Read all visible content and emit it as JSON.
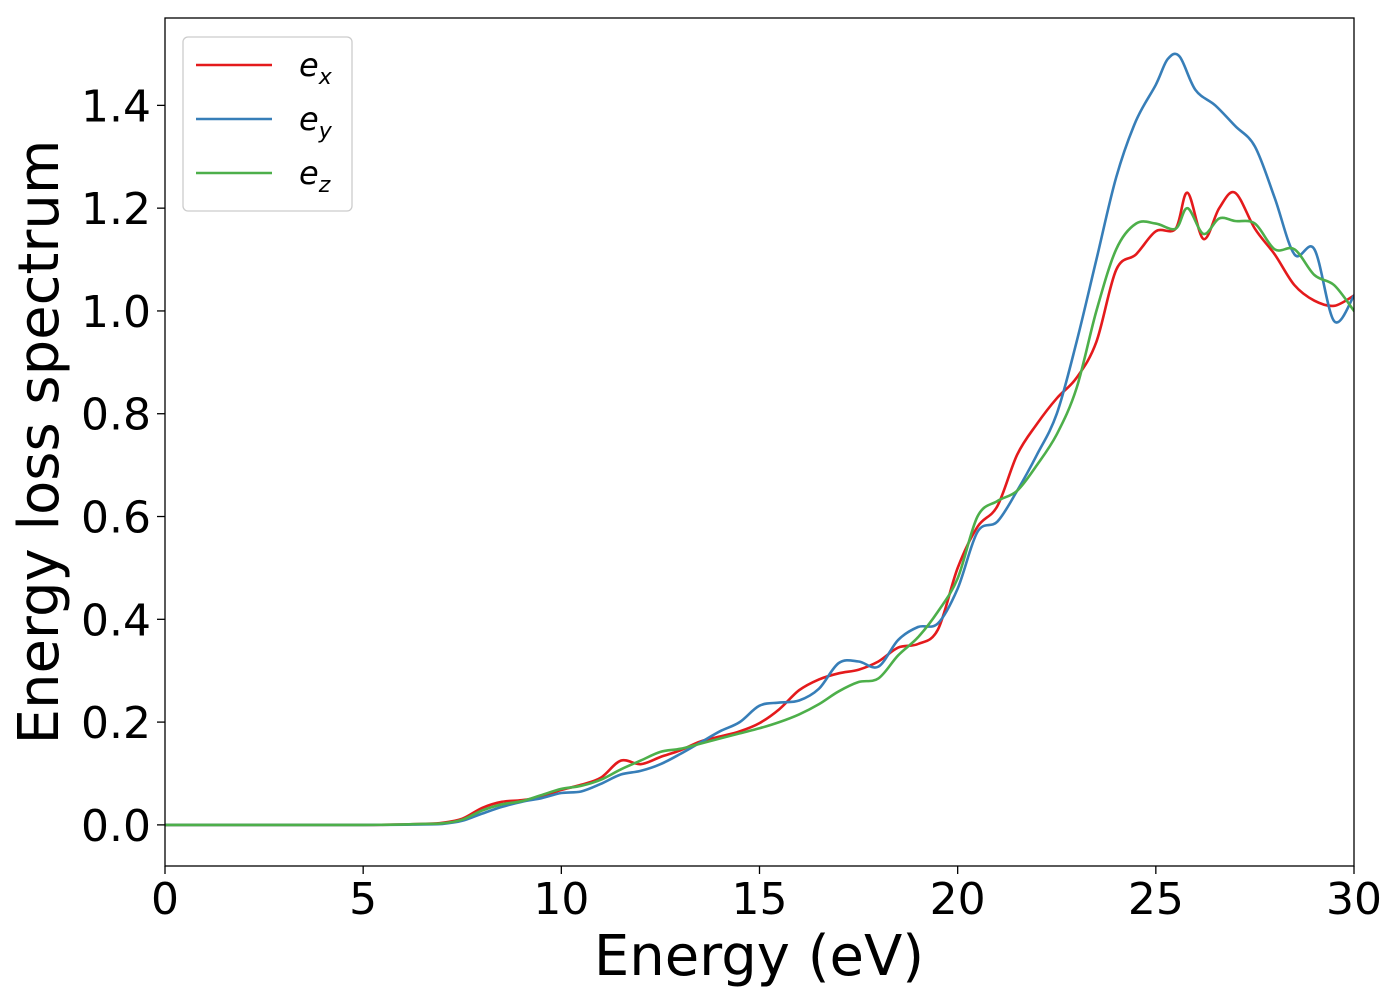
{
  "chart_data": {
    "type": "line",
    "xlabel": "Energy (eV)",
    "ylabel": "Energy loss spectrum",
    "xlim": [
      0,
      30
    ],
    "ylim": [
      -0.08,
      1.57
    ],
    "xticks": [
      0,
      5,
      10,
      15,
      20,
      25,
      30
    ],
    "xtick_labels": [
      "0",
      "5",
      "10",
      "15",
      "20",
      "25",
      "30"
    ],
    "yticks": [
      0.0,
      0.2,
      0.4,
      0.6,
      0.8,
      1.0,
      1.2,
      1.4
    ],
    "ytick_labels": [
      "0.0",
      "0.2",
      "0.4",
      "0.6",
      "0.8",
      "1.0",
      "1.2",
      "1.4"
    ],
    "grid": false,
    "legend_position": "top-left",
    "series": [
      {
        "name": "e",
        "subscript": "x",
        "color": "#e41a1c",
        "x": [
          0,
          5,
          6.5,
          7.0,
          7.5,
          8.0,
          8.5,
          9.0,
          9.5,
          10.0,
          10.5,
          11.0,
          11.5,
          12.0,
          12.5,
          13.0,
          13.5,
          14.0,
          14.5,
          15.0,
          15.5,
          16.0,
          16.5,
          17.0,
          17.5,
          18.0,
          18.5,
          19.0,
          19.5,
          20.0,
          20.5,
          21.0,
          21.5,
          22.0,
          22.5,
          23.0,
          23.5,
          24.0,
          24.5,
          25.0,
          25.5,
          25.8,
          26.2,
          26.6,
          27.0,
          27.5,
          28.0,
          28.5,
          29.0,
          29.5,
          30.0
        ],
        "y": [
          0.0,
          0.0,
          0.002,
          0.004,
          0.012,
          0.033,
          0.045,
          0.048,
          0.055,
          0.068,
          0.078,
          0.092,
          0.125,
          0.118,
          0.132,
          0.145,
          0.162,
          0.172,
          0.182,
          0.198,
          0.225,
          0.262,
          0.283,
          0.295,
          0.302,
          0.318,
          0.345,
          0.352,
          0.38,
          0.5,
          0.58,
          0.62,
          0.72,
          0.78,
          0.83,
          0.87,
          0.94,
          1.08,
          1.11,
          1.155,
          1.16,
          1.23,
          1.14,
          1.2,
          1.23,
          1.16,
          1.11,
          1.05,
          1.02,
          1.01,
          1.03
        ]
      },
      {
        "name": "e",
        "subscript": "y",
        "color": "#377eb8",
        "x": [
          0,
          5,
          6.5,
          7.0,
          7.5,
          8.0,
          8.5,
          9.0,
          9.5,
          10.0,
          10.5,
          11.0,
          11.5,
          12.0,
          12.5,
          13.0,
          13.5,
          14.0,
          14.5,
          15.0,
          15.5,
          16.0,
          16.5,
          17.0,
          17.5,
          18.0,
          18.5,
          19.0,
          19.5,
          20.0,
          20.5,
          21.0,
          21.5,
          22.0,
          22.5,
          23.0,
          23.5,
          24.0,
          24.5,
          25.0,
          25.3,
          25.6,
          26.0,
          26.5,
          27.0,
          27.5,
          28.0,
          28.5,
          29.0,
          29.5,
          30.0
        ],
        "y": [
          0.0,
          0.0,
          0.001,
          0.002,
          0.008,
          0.022,
          0.035,
          0.045,
          0.052,
          0.062,
          0.065,
          0.08,
          0.098,
          0.105,
          0.118,
          0.138,
          0.16,
          0.182,
          0.2,
          0.232,
          0.238,
          0.242,
          0.265,
          0.315,
          0.318,
          0.308,
          0.36,
          0.385,
          0.392,
          0.46,
          0.57,
          0.59,
          0.65,
          0.72,
          0.8,
          0.94,
          1.1,
          1.26,
          1.37,
          1.44,
          1.49,
          1.495,
          1.43,
          1.4,
          1.36,
          1.32,
          1.22,
          1.11,
          1.12,
          0.98,
          1.03
        ]
      },
      {
        "name": "e",
        "subscript": "z",
        "color": "#4daf4a",
        "x": [
          0,
          5,
          6.5,
          7.0,
          7.5,
          8.0,
          8.5,
          9.0,
          9.5,
          10.0,
          10.5,
          11.0,
          11.5,
          12.0,
          12.5,
          13.0,
          13.5,
          14.0,
          14.5,
          15.0,
          15.5,
          16.0,
          16.5,
          17.0,
          17.5,
          18.0,
          18.5,
          19.0,
          19.5,
          20.0,
          20.5,
          21.0,
          21.5,
          22.0,
          22.5,
          23.0,
          23.5,
          24.0,
          24.5,
          25.0,
          25.5,
          25.8,
          26.2,
          26.6,
          27.0,
          27.5,
          28.0,
          28.5,
          29.0,
          29.5,
          30.0
        ],
        "y": [
          0.0,
          0.0,
          0.002,
          0.003,
          0.01,
          0.028,
          0.04,
          0.046,
          0.058,
          0.07,
          0.076,
          0.088,
          0.108,
          0.125,
          0.142,
          0.148,
          0.158,
          0.168,
          0.178,
          0.188,
          0.2,
          0.215,
          0.235,
          0.26,
          0.278,
          0.285,
          0.33,
          0.365,
          0.415,
          0.48,
          0.6,
          0.63,
          0.65,
          0.7,
          0.76,
          0.85,
          1.0,
          1.12,
          1.17,
          1.17,
          1.16,
          1.2,
          1.15,
          1.18,
          1.175,
          1.17,
          1.12,
          1.12,
          1.07,
          1.05,
          1.0
        ]
      }
    ]
  }
}
